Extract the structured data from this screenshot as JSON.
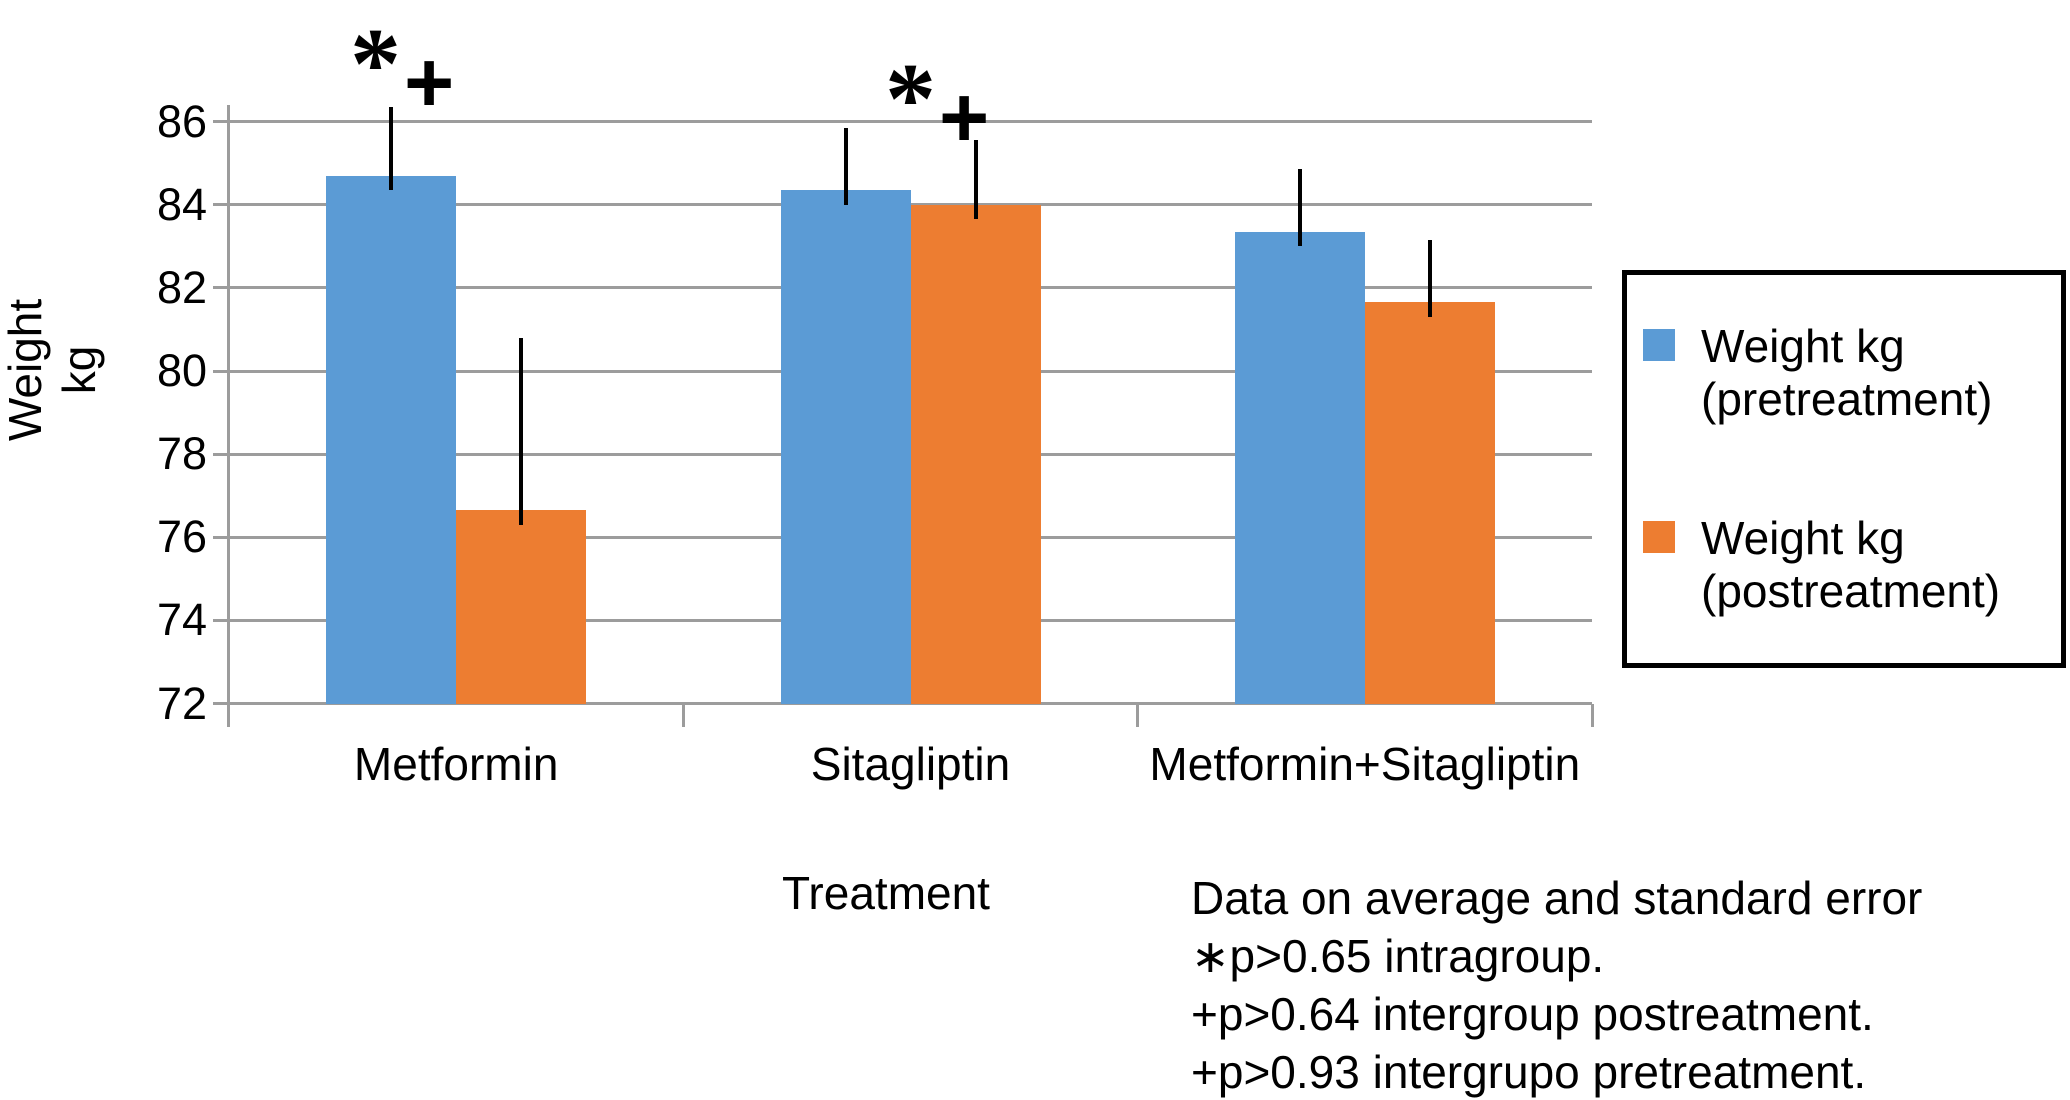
{
  "chart_data": {
    "type": "bar",
    "title": "",
    "categories": [
      "Metformin",
      "Sitagliptin",
      "Metformin+Sitagliptin"
    ],
    "series": [
      {
        "name": "Weight kg (pretreatment)",
        "color": "#5B9BD5",
        "values": [
          84.7,
          84.35,
          83.35
        ],
        "errors_plus": [
          1.65,
          1.5,
          1.5
        ]
      },
      {
        "name": "Weight kg (postreatment)",
        "color": "#ED7D31",
        "values": [
          76.65,
          84.0,
          81.65
        ],
        "errors_plus": [
          4.15,
          1.55,
          1.5
        ]
      }
    ],
    "xlabel": "Treatment",
    "ylabel": "Weight kg",
    "ylim": [
      72,
      86.4
    ],
    "yticks": [
      72,
      74,
      76,
      78,
      80,
      82,
      84,
      86
    ],
    "grid": true,
    "gridline_color": "#9C9C9C",
    "error_bar_color": "#000000",
    "legend_position": "right"
  },
  "axis": {
    "y_title_line1": "Weight",
    "y_title_line2": "kg",
    "x_title": "Treatment"
  },
  "annotations": [
    {
      "star": "*",
      "plus": "+",
      "category": "Metformin"
    },
    {
      "star": "*",
      "plus": "+",
      "category": "Sitagliptin"
    }
  ],
  "legend": {
    "items": [
      {
        "line1": "Weight kg",
        "line2": "(pretreatment)",
        "color": "#5B9BD5"
      },
      {
        "line1": "Weight kg",
        "line2": "(postreatment)",
        "color": "#ED7D31"
      }
    ]
  },
  "footnote": {
    "lines": [
      "Data on average and standard error",
      "∗p>0.65 intragroup.",
      "+p>0.64 intergroup postreatment.",
      "+p>0.93 intergrupo pretreatment."
    ]
  }
}
